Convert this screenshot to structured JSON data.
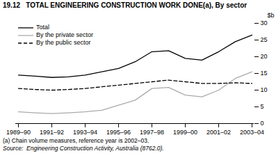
{
  "chart_data": {
    "type": "line",
    "title": "19.12   TOTAL ENGINEERING CONSTRUCTION WORK DONE(a), By sector",
    "ylabel": "$b",
    "annotations": [
      "(a) Chain volume measures, reference year is 2002–03.",
      "Source:  Engineering Construction Activity, Australia (8762.0)."
    ],
    "categories": [
      "1989–90",
      null,
      "1991–92",
      null,
      "1993–94",
      null,
      "1995–96",
      null,
      "1997–98",
      null,
      "1999–00",
      null,
      "2001–02",
      null,
      "2003–04"
    ],
    "series": [
      {
        "name": "Total",
        "color": "#000000",
        "line_style": "solid",
        "values": [
          14.5,
          14.2,
          13.8,
          14.0,
          14.5,
          15.5,
          16.5,
          18.5,
          21.5,
          21.8,
          19.5,
          19.0,
          21.5,
          24.5,
          26.5
        ]
      },
      {
        "name": "By the private sector",
        "color": "#aaaaaa",
        "line_style": "solid",
        "values": [
          3.5,
          3.2,
          3.0,
          3.2,
          3.5,
          4.0,
          5.5,
          7.0,
          10.5,
          10.8,
          8.5,
          8.0,
          10.0,
          13.5,
          15.5
        ]
      },
      {
        "name": "By the public sector",
        "color": "#000000",
        "line_style": "dashed",
        "values": [
          10.5,
          10.2,
          10.0,
          10.2,
          10.5,
          11.0,
          11.5,
          12.0,
          12.5,
          13.0,
          12.5,
          12.0,
          12.0,
          12.2,
          12.0
        ]
      }
    ],
    "ylim": [
      0,
      30
    ],
    "yticks": [
      0,
      5,
      10,
      15,
      20,
      25,
      30
    ],
    "legend": "upper left",
    "grid": false
  }
}
